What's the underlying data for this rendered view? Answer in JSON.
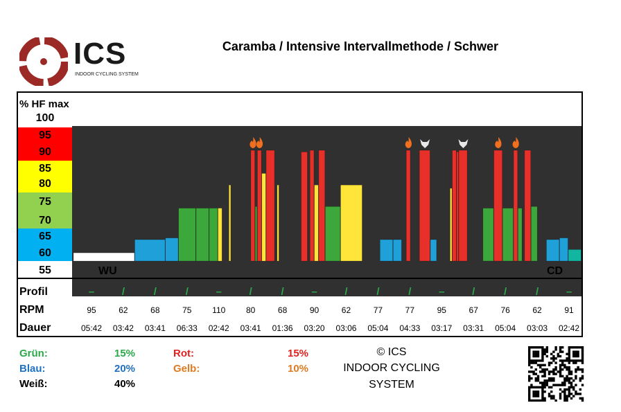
{
  "header": {
    "logo_text": "ICS",
    "logo_subtitle": "INDOOR CYCLING SYSTEM",
    "title": "Caramba / Intensive Intervallmethode / Schwer"
  },
  "colors": {
    "red": "#e8302a",
    "yellow": "#ffe43a",
    "green": "#3ca83c",
    "blue": "#1fa0d8",
    "white": "#ffffff",
    "dark": "#303030",
    "teal": "#12b5a0",
    "flame": "#f07020"
  },
  "chart_data": {
    "type": "bar",
    "title": "Caramba / Intensive Intervallmethode / Schwer",
    "ylabel": "% HF max",
    "ylim": [
      55,
      100
    ],
    "yticks": [
      "100",
      "95",
      "90",
      "85",
      "80",
      "75",
      "70",
      "65",
      "60",
      "55"
    ],
    "zones": [
      {
        "name": "red",
        "range": [
          90,
          95
        ],
        "color": "#ff0000"
      },
      {
        "name": "yellow",
        "range": [
          80,
          85
        ],
        "color": "#ffff00"
      },
      {
        "name": "green",
        "range": [
          70,
          75
        ],
        "color": "#92d050"
      },
      {
        "name": "blue",
        "range": [
          60,
          65
        ],
        "color": "#00b0f0"
      }
    ],
    "phase_labels": {
      "warmup": "WU",
      "cooldown": "CD"
    },
    "segments": [
      {
        "zone": "white",
        "start": 0,
        "end": 14,
        "value": 60
      },
      {
        "zone": "blue",
        "start": 14,
        "end": 21,
        "value": 64
      },
      {
        "zone": "blue",
        "start": 21,
        "end": 24,
        "value": 64.5
      },
      {
        "zone": "green",
        "start": 24,
        "end": 28,
        "value": 73.5
      },
      {
        "zone": "green",
        "start": 28,
        "end": 31,
        "value": 73.5
      },
      {
        "zone": "green",
        "start": 31,
        "end": 33,
        "value": 73.5
      },
      {
        "zone": "yellow",
        "start": 33,
        "end": 34,
        "value": 73.5
      },
      {
        "zone": "white",
        "start": 34,
        "end": 35.5,
        "value": 56
      },
      {
        "zone": "yellow",
        "start": 35.5,
        "end": 36,
        "value": 80.5
      },
      {
        "zone": "white",
        "start": 36,
        "end": 40.5,
        "value": 56
      },
      {
        "zone": "red",
        "start": 40.5,
        "end": 41.5,
        "value": 91,
        "icon": "flame"
      },
      {
        "zone": "green",
        "start": 41.5,
        "end": 42,
        "value": 74
      },
      {
        "zone": "red",
        "start": 42,
        "end": 43,
        "value": 91,
        "icon": "flame"
      },
      {
        "zone": "yellow",
        "start": 43,
        "end": 44,
        "value": 84
      },
      {
        "zone": "red",
        "start": 44,
        "end": 46,
        "value": 91
      },
      {
        "zone": "yellow",
        "start": 46.5,
        "end": 47,
        "value": 80.5
      },
      {
        "zone": "white",
        "start": 47,
        "end": 52,
        "value": 56
      },
      {
        "zone": "red",
        "start": 52,
        "end": 53.5,
        "value": 90.5
      },
      {
        "zone": "red",
        "start": 54,
        "end": 55,
        "value": 91
      },
      {
        "zone": "yellow",
        "start": 55,
        "end": 56,
        "value": 80.5
      },
      {
        "zone": "red",
        "start": 56,
        "end": 57.5,
        "value": 91
      },
      {
        "zone": "green",
        "start": 57.5,
        "end": 61,
        "value": 74
      },
      {
        "zone": "yellow",
        "start": 61,
        "end": 66,
        "value": 80.5
      },
      {
        "zone": "white",
        "start": 66,
        "end": 70,
        "value": 56
      },
      {
        "zone": "blue",
        "start": 70,
        "end": 73,
        "value": 64
      },
      {
        "zone": "blue",
        "start": 73,
        "end": 75,
        "value": 64
      },
      {
        "zone": "white",
        "start": 75,
        "end": 76,
        "value": 56
      },
      {
        "zone": "red",
        "start": 76,
        "end": 77,
        "value": 91,
        "icon": "flame"
      },
      {
        "zone": "white",
        "start": 77,
        "end": 79,
        "value": 56
      },
      {
        "zone": "red",
        "start": 79,
        "end": 81.5,
        "value": 91,
        "icon": "skull"
      },
      {
        "zone": "blue",
        "start": 81.5,
        "end": 83,
        "value": 64
      },
      {
        "zone": "white",
        "start": 83,
        "end": 86,
        "value": 56
      },
      {
        "zone": "yellow",
        "start": 86,
        "end": 86.5,
        "value": 79.5
      },
      {
        "zone": "red",
        "start": 86.5,
        "end": 87.5,
        "value": 91
      },
      {
        "zone": "red",
        "start": 87.5,
        "end": 88,
        "value": 90.5
      },
      {
        "zone": "red",
        "start": 88,
        "end": 90,
        "value": 91,
        "icon": "skull"
      },
      {
        "zone": "white",
        "start": 90,
        "end": 93.5,
        "value": 56
      },
      {
        "zone": "green",
        "start": 93.5,
        "end": 96,
        "value": 73.5
      },
      {
        "zone": "red",
        "start": 96,
        "end": 98,
        "value": 91,
        "icon": "flame"
      },
      {
        "zone": "green",
        "start": 98,
        "end": 100.5,
        "value": 73.5
      },
      {
        "zone": "red",
        "start": 100.5,
        "end": 101.5,
        "value": 91,
        "icon": "flame"
      },
      {
        "zone": "green",
        "start": 101.5,
        "end": 102.5,
        "value": 73.5
      },
      {
        "zone": "red",
        "start": 103,
        "end": 104.5,
        "value": 91
      },
      {
        "zone": "green",
        "start": 104.5,
        "end": 106,
        "value": 74
      },
      {
        "zone": "white",
        "start": 106,
        "end": 108,
        "value": 56
      },
      {
        "zone": "blue",
        "start": 108,
        "end": 111,
        "value": 64
      },
      {
        "zone": "blue",
        "start": 111,
        "end": 113,
        "value": 64.5
      },
      {
        "zone": "teal",
        "start": 113,
        "end": 116,
        "value": 61
      }
    ]
  },
  "table": {
    "row_labels": {
      "profile": "Profil",
      "rpm": "RPM",
      "duration": "Dauer"
    },
    "columns": [
      {
        "profile": "–",
        "rpm": "95",
        "duration": "05:42"
      },
      {
        "profile": "/",
        "rpm": "62",
        "duration": "03:42"
      },
      {
        "profile": "/",
        "rpm": "68",
        "duration": "03:41"
      },
      {
        "profile": "/",
        "rpm": "75",
        "duration": "06:33"
      },
      {
        "profile": "–",
        "rpm": "110",
        "duration": "02:42"
      },
      {
        "profile": "/",
        "rpm": "80",
        "duration": "03:41"
      },
      {
        "profile": "/",
        "rpm": "68",
        "duration": "01:36"
      },
      {
        "profile": "–",
        "rpm": "90",
        "duration": "03:20"
      },
      {
        "profile": "/",
        "rpm": "62",
        "duration": "03:06"
      },
      {
        "profile": "/",
        "rpm": "77",
        "duration": "05:04"
      },
      {
        "profile": "/",
        "rpm": "77",
        "duration": "04:33"
      },
      {
        "profile": "–",
        "rpm": "95",
        "duration": "03:17"
      },
      {
        "profile": "/",
        "rpm": "67",
        "duration": "03:31"
      },
      {
        "profile": "/",
        "rpm": "76",
        "duration": "05:04"
      },
      {
        "profile": "/",
        "rpm": "62",
        "duration": "03:03"
      },
      {
        "profile": "–",
        "rpm": "91",
        "duration": "02:42"
      }
    ]
  },
  "stats": {
    "green_label": "Grün:",
    "green_value": "15%",
    "blue_label": "Blau:",
    "blue_value": "20%",
    "white_label": "Weiß:",
    "white_value": "40%",
    "red_label": "Rot:",
    "red_value": "15%",
    "yellow_label": "Gelb:",
    "yellow_value": "10%"
  },
  "footer": {
    "copyright_line1": "© ICS",
    "copyright_line2": "INDOOR CYCLING",
    "copyright_line3": "SYSTEM"
  }
}
